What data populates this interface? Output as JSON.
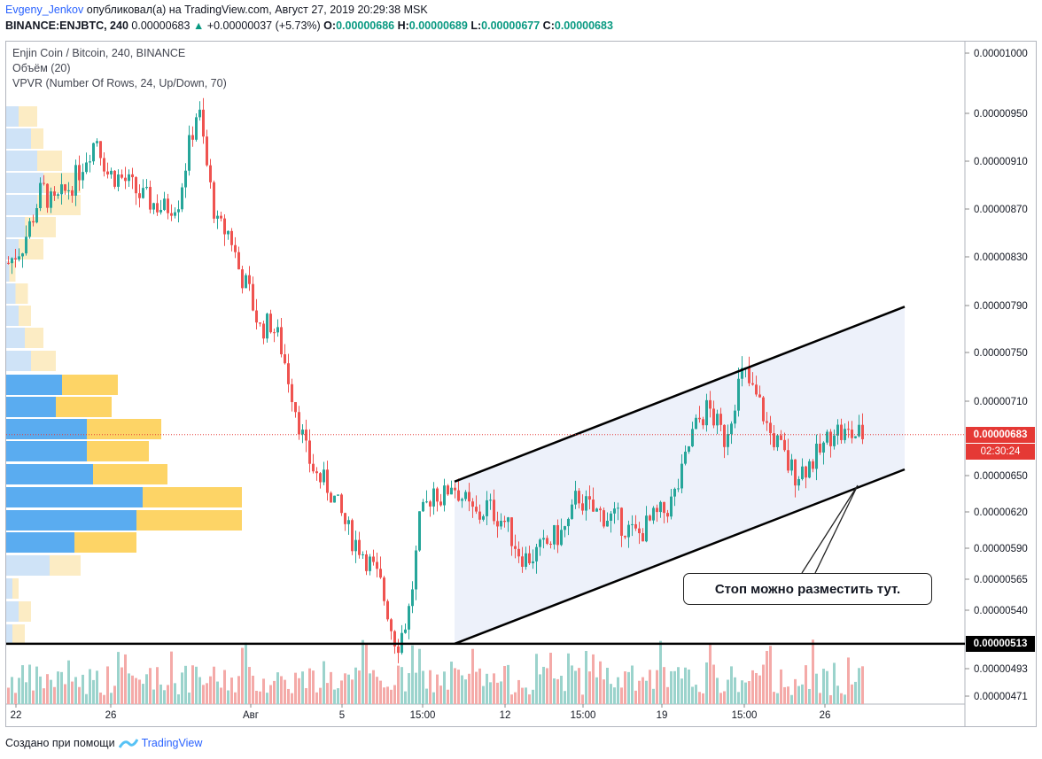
{
  "header": {
    "author": "Evgeny_Jenkov",
    "published_text": "опубликовал(а) на TradingView.com, Август 27, 2019 20:29:38 MSK",
    "ticker_line": "BINANCE:ENJBTC, 240",
    "last_price": "0.00000683",
    "change_arrow": "▲",
    "change": "+0.00000037 (+5.73%)",
    "o_label": "O:",
    "o_value": "0.00000686",
    "h_label": "H:",
    "h_value": "0.00000689",
    "l_label": "L:",
    "l_value": "0.00000677",
    "c_label": "C:",
    "c_value": "0.00000683"
  },
  "legend": {
    "symbol": "Enjin Coin / Bitcoin, 240, BINANCE",
    "volume": "Объём (20)",
    "vpvr": "VPVR (Number Of Rows, 24, Up/Down, 70)"
  },
  "annotation": {
    "callout_text": "Стоп можно разместить тут."
  },
  "price_labels": {
    "current": "0.00000683",
    "countdown": "02:30:24",
    "support": "0.00000513"
  },
  "footer": {
    "created_with": "Создано при помощи",
    "brand": "TradingView"
  },
  "colors": {
    "up": "#26a69a",
    "down": "#ef5350",
    "vol_up": "#9bd3cc",
    "vol_down": "#f4aaa8",
    "vpvr_up": "#5aacf0",
    "vpvr_down": "#fdd466",
    "vpvr_up_light": "#cfe3f7",
    "vpvr_down_light": "#fcecc4",
    "channel_fill": "#e8eef9",
    "price_label": "#e53935",
    "support_label": "#000000"
  },
  "chart_data": {
    "type": "candlestick",
    "y_axis_ticks": [
      "0.00001000",
      "0.00000950",
      "0.00000910",
      "0.00000870",
      "0.00000830",
      "0.00000790",
      "0.00000750",
      "0.00000710",
      "0.00000650",
      "0.00000620",
      "0.00000590",
      "0.00000565",
      "0.00000540",
      "0.00000493",
      "0.00000471"
    ],
    "x_axis_ticks": [
      "22",
      "26",
      "Авг",
      "5",
      "15:00",
      "12",
      "15:00",
      "19",
      "15:00",
      "26"
    ],
    "series_path": [
      [
        0,
        8.25e-06
      ],
      [
        16,
        8.4e-06
      ],
      [
        26,
        8.6e-06
      ],
      [
        38,
        8.88e-06
      ],
      [
        50,
        8.72e-06
      ],
      [
        62,
        8.82e-06
      ],
      [
        76,
        8.96e-06
      ],
      [
        90,
        9.18e-06
      ],
      [
        100,
        9.3e-06
      ],
      [
        112,
        9e-06
      ],
      [
        130,
        8.95e-06
      ],
      [
        150,
        8.8e-06
      ],
      [
        176,
        8.7e-06
      ],
      [
        192,
        8.78e-06
      ],
      [
        200,
        9.08e-06
      ],
      [
        214,
        9.57e-06
      ],
      [
        226,
        8.95e-06
      ],
      [
        236,
        8.55e-06
      ],
      [
        250,
        8.5e-06
      ],
      [
        260,
        8.2e-06
      ],
      [
        272,
        8e-06
      ],
      [
        284,
        7.7e-06
      ],
      [
        296,
        7.75e-06
      ],
      [
        306,
        7.6e-06
      ],
      [
        316,
        7.3e-06
      ],
      [
        326,
        7e-06
      ],
      [
        336,
        6.68e-06
      ],
      [
        348,
        6.5e-06
      ],
      [
        362,
        6.4e-06
      ],
      [
        374,
        6.2e-06
      ],
      [
        386,
        6e-06
      ],
      [
        398,
        5.9e-06
      ],
      [
        410,
        5.75e-06
      ],
      [
        420,
        5.6e-06
      ],
      [
        428,
        5.4e-06
      ],
      [
        434,
        5.2e-06
      ],
      [
        440,
        5.15e-06
      ],
      [
        446,
        5.25e-06
      ],
      [
        452,
        5.4e-06
      ],
      [
        458,
        5.7e-06
      ],
      [
        464,
        6.1e-06
      ],
      [
        472,
        6.25e-06
      ],
      [
        480,
        6.4e-06
      ],
      [
        490,
        6.3e-06
      ],
      [
        500,
        6.45e-06
      ],
      [
        510,
        6.35e-06
      ],
      [
        520,
        6.22e-06
      ],
      [
        530,
        6.15e-06
      ],
      [
        540,
        6.25e-06
      ],
      [
        550,
        6.18e-06
      ],
      [
        560,
        6.12e-06
      ],
      [
        568,
        6e-06
      ],
      [
        576,
        5.88e-06
      ],
      [
        584,
        5.82e-06
      ],
      [
        594,
        5.85e-06
      ],
      [
        604,
        5.9e-06
      ],
      [
        614,
        5.98e-06
      ],
      [
        624,
        6.02e-06
      ],
      [
        634,
        6.12e-06
      ],
      [
        642,
        6.35e-06
      ],
      [
        652,
        6.25e-06
      ],
      [
        660,
        6.2e-06
      ],
      [
        670,
        6.18e-06
      ],
      [
        680,
        6.15e-06
      ],
      [
        690,
        6.12e-06
      ],
      [
        700,
        6.05e-06
      ],
      [
        710,
        6e-06
      ],
      [
        720,
        6.08e-06
      ],
      [
        730,
        6.15e-06
      ],
      [
        740,
        6.2e-06
      ],
      [
        750,
        6.3e-06
      ],
      [
        760,
        6.5e-06
      ],
      [
        770,
        6.8e-06
      ],
      [
        780,
        6.95e-06
      ],
      [
        790,
        7.05e-06
      ],
      [
        800,
        6.9e-06
      ],
      [
        808,
        6.8e-06
      ],
      [
        816,
        7e-06
      ],
      [
        822,
        7.2e-06
      ],
      [
        830,
        7.35e-06
      ],
      [
        838,
        7.2e-06
      ],
      [
        846,
        7.1e-06
      ],
      [
        852,
        7e-06
      ],
      [
        858,
        6.85e-06
      ],
      [
        866,
        6.78e-06
      ],
      [
        874,
        6.68e-06
      ],
      [
        880,
        6.58e-06
      ],
      [
        888,
        6.52e-06
      ],
      [
        896,
        6.55e-06
      ],
      [
        904,
        6.6e-06
      ],
      [
        912,
        6.65e-06
      ],
      [
        922,
        6.75e-06
      ],
      [
        932,
        6.9e-06
      ],
      [
        940,
        6.83e-06
      ]
    ],
    "channel": {
      "upper": [
        [
          513,
          6.45e-06
        ],
        [
          1021,
          7.89e-06
        ]
      ],
      "lower": [
        [
          513,
          5.13e-06
        ],
        [
          1021,
          6.55e-06
        ]
      ]
    },
    "support_line_value": 5.13e-06,
    "current_price_value": 6.83e-06
  }
}
